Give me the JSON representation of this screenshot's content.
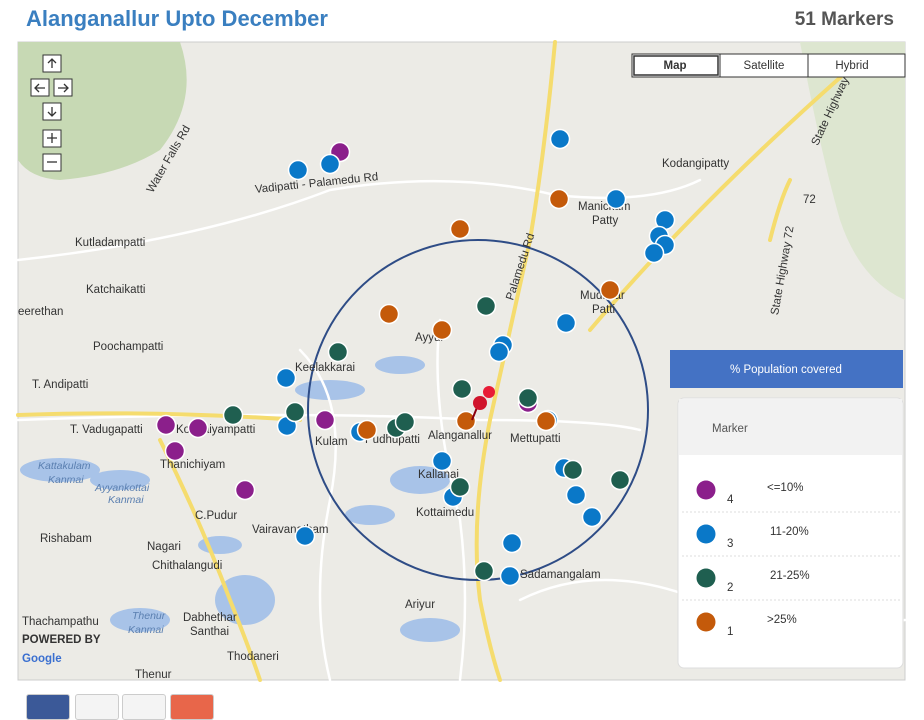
{
  "header": {
    "title": "Alanganallur Upto December",
    "count": "51 Markers"
  },
  "map_types": [
    "Map",
    "Satellite",
    "Hybrid"
  ],
  "places": [
    "Kodangipatty",
    "Manickam",
    "Patty",
    "Kutladampatti",
    "Katchaikatti",
    "eerethan",
    "Poochampatti",
    "Keelakkarai",
    "Ayyur",
    "T. Andipatti",
    "T. Vadugapatti",
    "Kondaiyampatti",
    "Kulam",
    "Pudhupatti",
    "Alanganallur",
    "Mettupatti",
    "Thanichiyam",
    "C.Pudur",
    "Kallanai",
    "Kottaimedu",
    "Vairavanatham",
    "Rishabam",
    "Nagari",
    "Chithalangudi",
    "Ariyur",
    "Thachampathu",
    "Dabhethar",
    "Santhai",
    "Thodaneri",
    "Thenur",
    "Mudavar",
    "Patti",
    "Sadamangalam"
  ],
  "water": [
    "Kattakulam",
    "Kanmai",
    "Ayyankottai",
    "Kanmai",
    "Thenur",
    "Kanmai"
  ],
  "roads": [
    "Vadipatti - Palamedu Rd",
    "Water Falls Rd",
    "Palamedu Rd",
    "State Highway 72",
    "State Highway",
    "72"
  ],
  "legend": {
    "heading": "% Population covered",
    "title": "Marker",
    "items": [
      {
        "number": "4",
        "label": "<=10%",
        "color": "#8b1f8b"
      },
      {
        "number": "3",
        "label": "11-20%",
        "color": "#0a78c8"
      },
      {
        "number": "2",
        "label": "21-25%",
        "color": "#1f5f50"
      },
      {
        "number": "1",
        "label": ">25%",
        "color": "#c45a0a"
      }
    ]
  },
  "attribution": {
    "powered": "POWERED BY",
    "brand": "Google"
  }
}
